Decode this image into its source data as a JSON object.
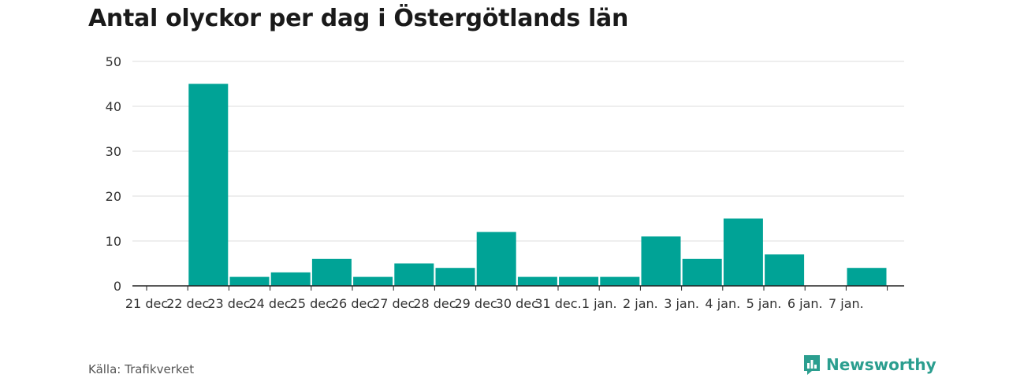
{
  "colors": {
    "bar": "#00a396",
    "axis": "#222222",
    "grid": "#dddddd",
    "brand": "#2b9e8f"
  },
  "chart_data": {
    "type": "bar",
    "title": "Antal olyckor per dag i Östergötlands län",
    "xlabel": "",
    "ylabel": "",
    "ylim": [
      0,
      50
    ],
    "yticks": [
      0,
      10,
      20,
      30,
      40,
      50
    ],
    "grid": true,
    "categories": [
      "21 dec",
      "22 dec",
      "23 dec",
      "24 dec",
      "25 dec",
      "26 dec",
      "27 dec",
      "28 dec",
      "29 dec",
      "30 dec",
      "31 dec.",
      "1 jan.",
      "2 jan.",
      "3 jan.",
      "4 jan.",
      "5 jan.",
      "6 jan.",
      "7 jan."
    ],
    "values": [
      0,
      45,
      2,
      3,
      6,
      2,
      5,
      4,
      12,
      2,
      2,
      2,
      11,
      6,
      15,
      7,
      0,
      4
    ]
  },
  "footer": {
    "source": "Källa: Trafikverket",
    "brand": "Newsworthy",
    "brand_icon": "bar-chart-logo-icon"
  }
}
